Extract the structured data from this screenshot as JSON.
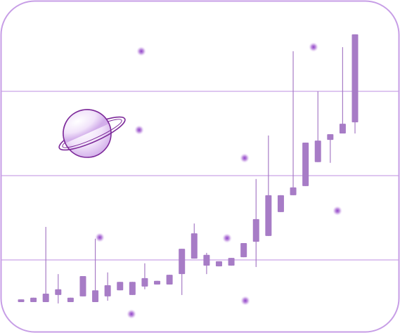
{
  "chart_data": {
    "type": "candlestick",
    "color": "#a77cc6",
    "grid": true,
    "ylim": [
      0,
      100
    ],
    "yticks": [
      25,
      50,
      75
    ],
    "series": [
      {
        "open": [
          12.5,
          12.5,
          12.5,
          14.6,
          12.5,
          14.2,
          12.5,
          14.2,
          16.0,
          14.6,
          17.1,
          17.7,
          17.7,
          20.8,
          25.4,
          23.3,
          23.1,
          23.3,
          25.8,
          30.4,
          32.1,
          39.2,
          44.2,
          46.9,
          54.0,
          60.6,
          62.5,
          65.8
        ],
        "close": [
          13.3,
          13.8,
          15.0,
          16.3,
          13.8,
          20.2,
          16.0,
          17.5,
          18.5,
          18.5,
          19.6,
          18.8,
          20.6,
          28.3,
          32.9,
          26.5,
          24.6,
          25.6,
          30.0,
          37.1,
          44.2,
          44.2,
          46.5,
          59.8,
          60.4,
          62.3,
          65.4,
          91.9
        ],
        "high": [
          13.3,
          13.8,
          34.8,
          20.8,
          13.8,
          20.2,
          31.3,
          21.3,
          18.5,
          18.5,
          24.0,
          18.8,
          20.6,
          28.3,
          35.8,
          27.1,
          24.6,
          25.6,
          30.0,
          49.0,
          61.9,
          44.2,
          86.9,
          59.8,
          75.0,
          62.3,
          88.1,
          91.9
        ],
        "low": [
          12.5,
          12.5,
          12.5,
          12.1,
          12.5,
          14.2,
          12.5,
          12.9,
          16.0,
          14.6,
          16.3,
          17.7,
          17.7,
          14.6,
          25.4,
          20.8,
          23.1,
          23.3,
          25.8,
          22.9,
          32.1,
          39.2,
          44.2,
          46.9,
          54.0,
          53.8,
          62.5,
          62.5
        ]
      }
    ]
  }
}
